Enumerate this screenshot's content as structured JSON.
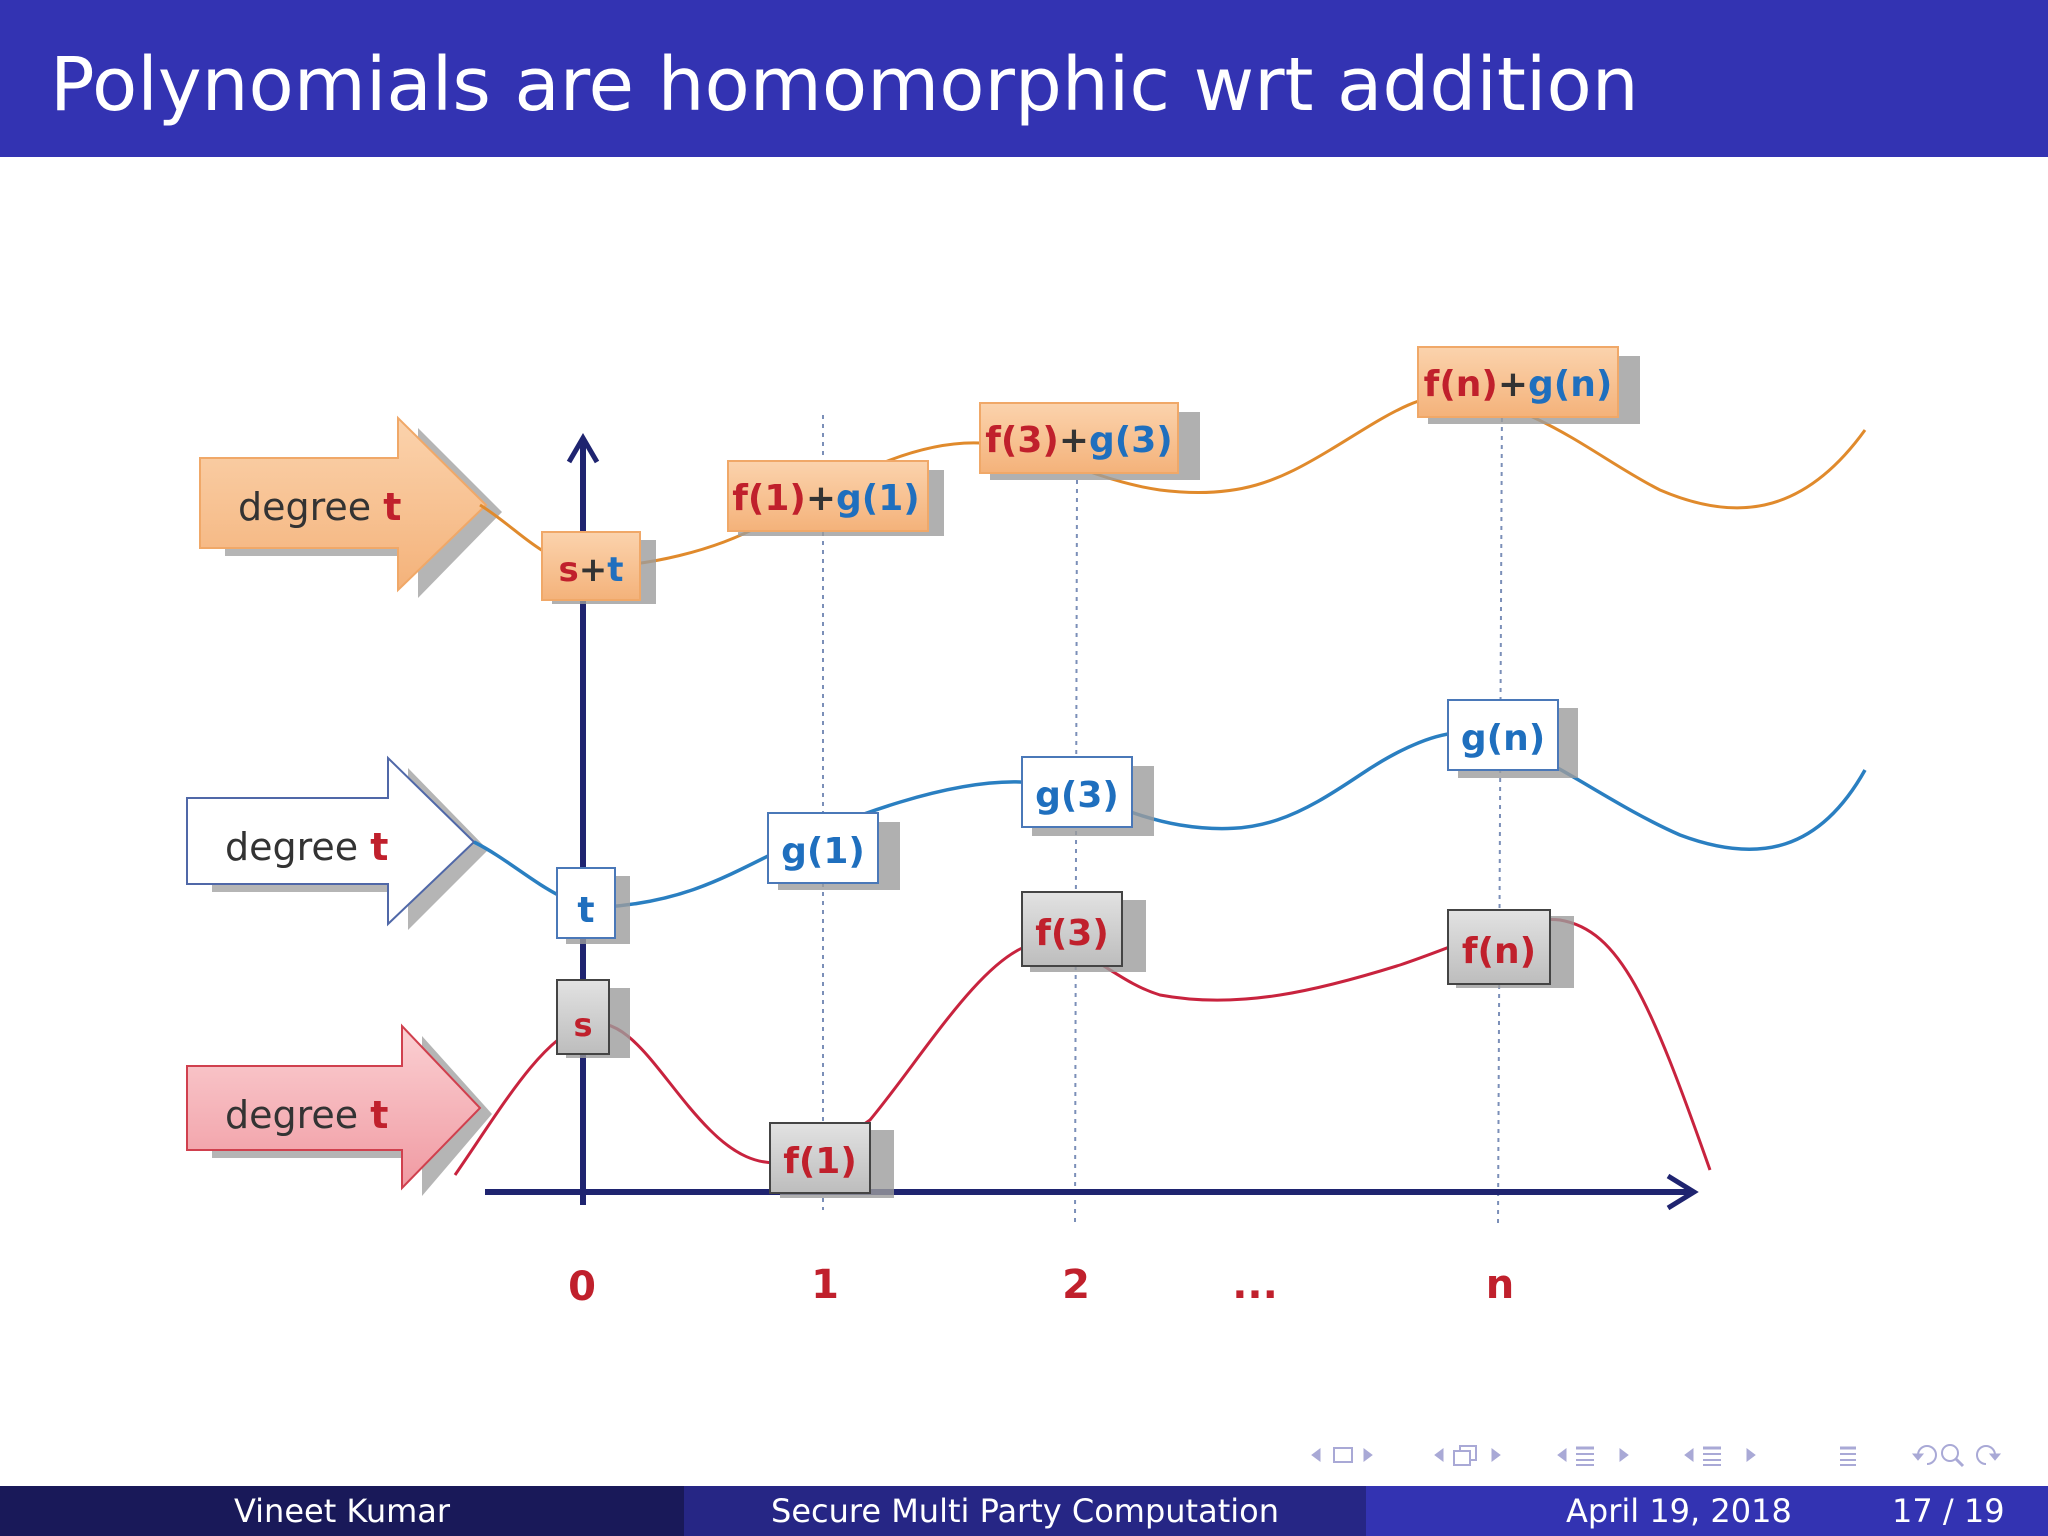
{
  "slide": {
    "title": "Polynomials are homomorphic wrt addition"
  },
  "diagram": {
    "arrows": [
      {
        "label": "degree ",
        "emph": "t"
      },
      {
        "label": "degree ",
        "emph": "t"
      },
      {
        "label": "degree ",
        "emph": "t"
      }
    ],
    "boxes": {
      "st_s": "s",
      "st_plus": "+",
      "st_t": "t",
      "f1g1_f": "f(1)",
      "f1g1_plus": "+",
      "f1g1_g": "g(1)",
      "f3g3_f": "f(3)",
      "f3g3_plus": "+",
      "f3g3_g": "g(3)",
      "fngn_f": "f(n)",
      "fngn_plus": "+",
      "fngn_g": "g(n)",
      "t": "t",
      "g1": "g(1)",
      "g3": "g(3)",
      "gn": "g(n)",
      "s": "s",
      "f1": "f(1)",
      "f3": "f(3)",
      "fn": "f(n)"
    },
    "x_ticks": [
      "0",
      "1",
      "2",
      "...",
      "n"
    ],
    "colors": {
      "orange_curve": "#e08a2c",
      "blue_curve": "#2a7fc1",
      "red_curve": "#c8233e",
      "axis": "#1f2470",
      "red_text": "#c0202c",
      "blue_text": "#1f6fbe"
    }
  },
  "footer": {
    "author": "Vineet Kumar",
    "talk": "Secure Multi Party Computation",
    "date": "April 19, 2018",
    "page": "17 / 19"
  }
}
